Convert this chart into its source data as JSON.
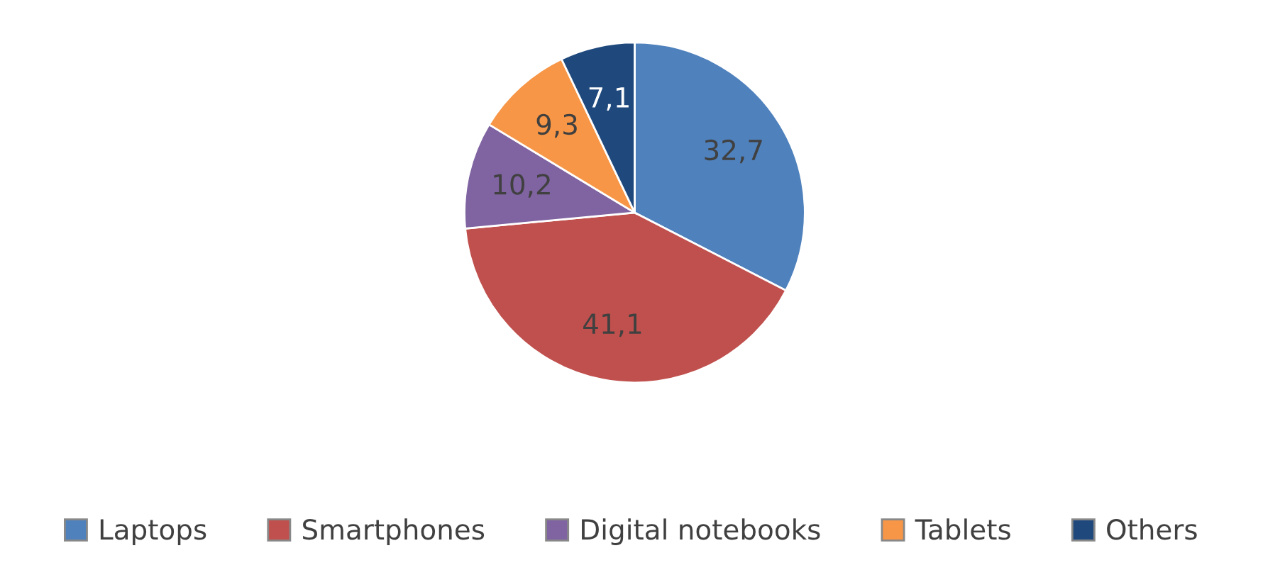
{
  "chart_data": {
    "type": "pie",
    "categories": [
      "Laptops",
      "Smartphones",
      "Digital notebooks",
      "Tablets",
      "Others"
    ],
    "values": [
      32.7,
      41.1,
      10.2,
      9.3,
      7.1
    ],
    "value_labels": [
      "32,7",
      "41,1",
      "10,2",
      "9,3",
      "7,1"
    ],
    "colors": [
      "#4f81bd",
      "#c0504d",
      "#8064a2",
      "#f79646",
      "#1f497d"
    ],
    "legend": "bottom"
  }
}
